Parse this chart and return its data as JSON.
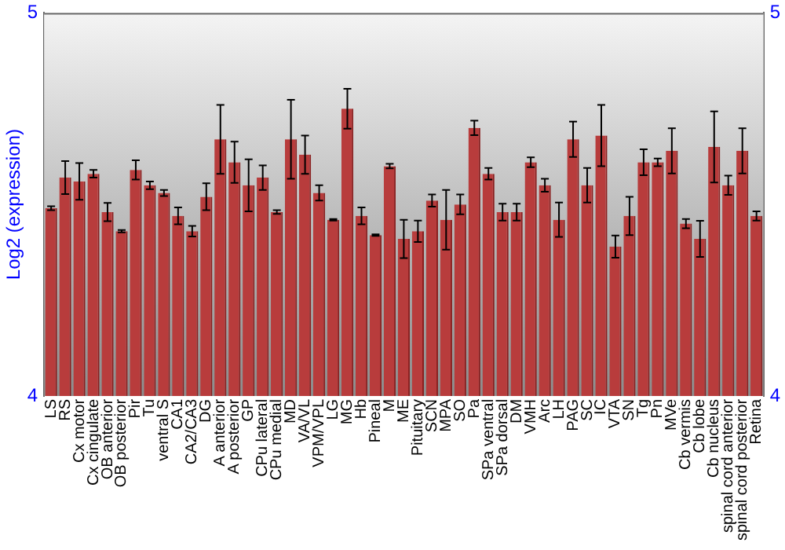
{
  "chart_data": {
    "type": "bar",
    "ylabel": "Log2 (expression)",
    "categories": [
      "LS",
      "RS",
      "Cx motor",
      "Cx cingulate",
      "OB anterior",
      "OB posterior",
      "Pir",
      "Tu",
      "ventral S",
      "CA1",
      "CA2/CA3",
      "DG",
      "A anterior",
      "A posterior",
      "GP",
      "CPu lateral",
      "CPu medial",
      "MD",
      "VA/VL",
      "VPM/VPL",
      "LG",
      "MG",
      "Hb",
      "Pineal",
      "M",
      "ME",
      "Pituitary",
      "SCN",
      "MPA",
      "SO",
      "Pa",
      "SPa ventral",
      "SPa dorsal",
      "DM",
      "VMH",
      "Arc",
      "LH",
      "PAG",
      "SC",
      "IC",
      "VTA",
      "SN",
      "Tg",
      "Pn",
      "MVe",
      "Cb vermis",
      "Cb lobe",
      "Cb nucleus",
      "spinal cord anterior",
      "spinal cord posterior",
      "Retina"
    ],
    "values": [
      4.49,
      4.57,
      4.56,
      4.58,
      4.48,
      4.43,
      4.59,
      4.55,
      4.53,
      4.47,
      4.43,
      4.52,
      4.67,
      4.61,
      4.55,
      4.57,
      4.48,
      4.67,
      4.63,
      4.53,
      4.46,
      4.75,
      4.47,
      4.42,
      4.6,
      4.41,
      4.43,
      4.51,
      4.46,
      4.5,
      4.7,
      4.58,
      4.48,
      4.48,
      4.61,
      4.55,
      4.46,
      4.67,
      4.55,
      4.68,
      4.39,
      4.47,
      4.61,
      4.61,
      4.64,
      4.45,
      4.41,
      4.65,
      4.55,
      4.64,
      4.47
    ],
    "errors": [
      0.005,
      0.043,
      0.048,
      0.01,
      0.024,
      0.003,
      0.025,
      0.01,
      0.008,
      0.022,
      0.014,
      0.035,
      0.09,
      0.054,
      0.068,
      0.032,
      0.005,
      0.103,
      0.05,
      0.02,
      0.002,
      0.052,
      0.022,
      0.002,
      0.006,
      0.05,
      0.028,
      0.016,
      0.078,
      0.026,
      0.019,
      0.015,
      0.022,
      0.022,
      0.013,
      0.017,
      0.045,
      0.046,
      0.045,
      0.08,
      0.029,
      0.05,
      0.034,
      0.01,
      0.059,
      0.012,
      0.047,
      0.093,
      0.025,
      0.059,
      0.012
    ],
    "color": "#b83c3c",
    "ylim": [
      4,
      5
    ],
    "yticks": [
      4,
      5
    ],
    "y2lim": [
      4,
      5
    ],
    "y2ticks": [
      4,
      5
    ],
    "grid": false,
    "legend": false
  }
}
